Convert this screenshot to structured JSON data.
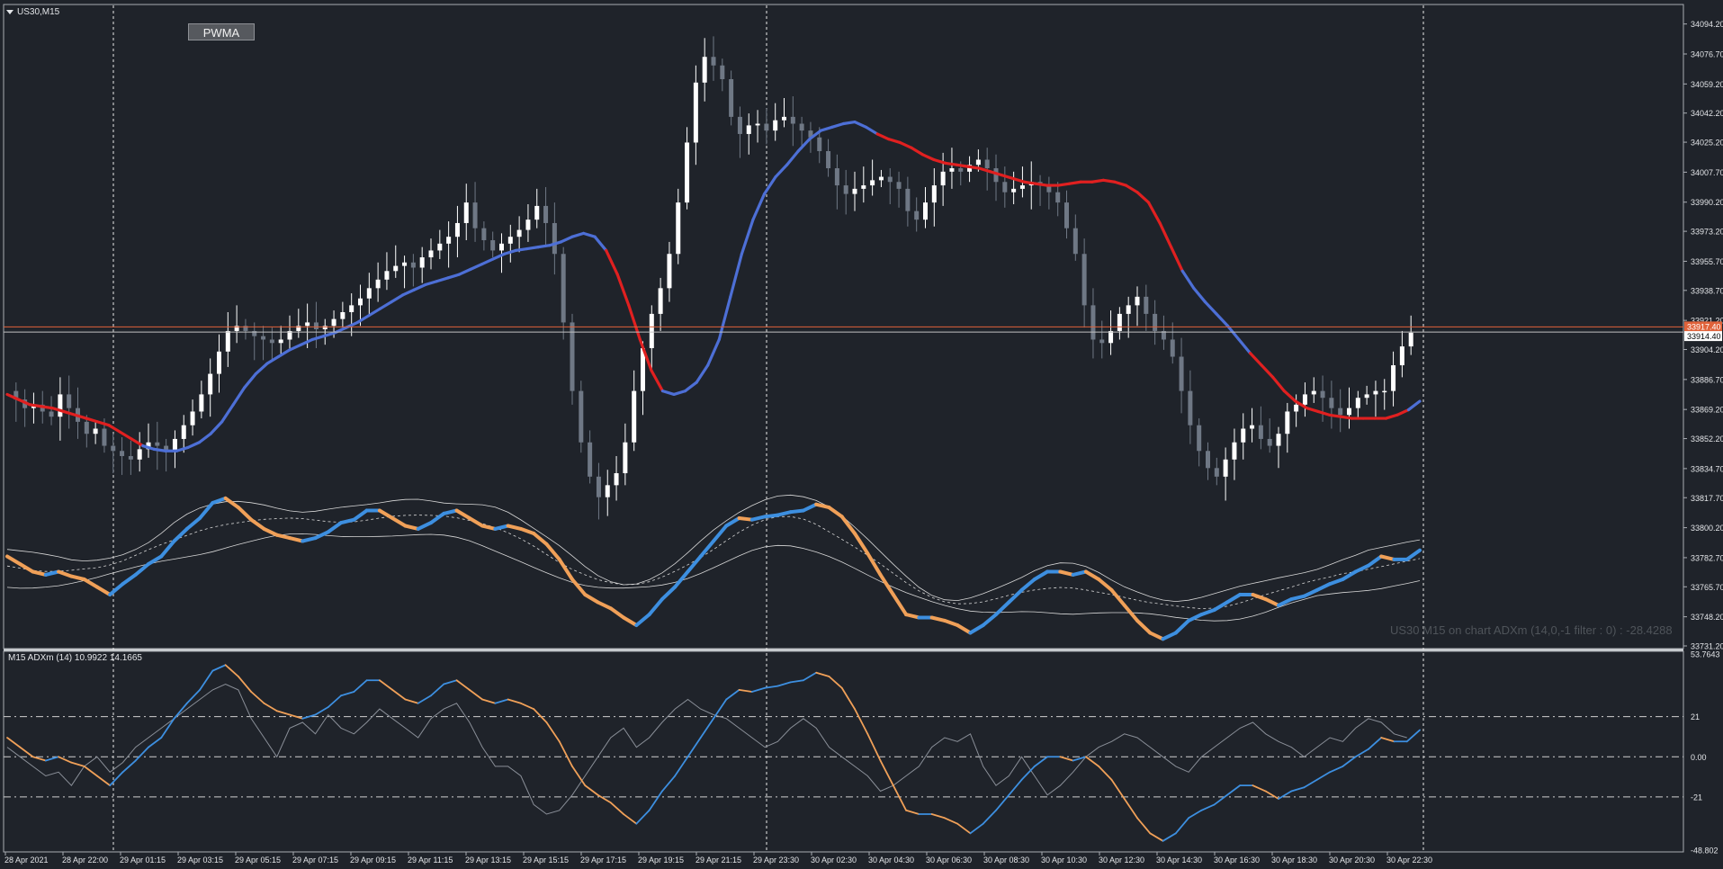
{
  "header": {
    "symbol_label": "US30,M15",
    "indicator_button": "PWMA",
    "subwindow_label": "M15 ADXm (14) 10.9922 14.1665",
    "overlay_label": "US30 M15 on chart ADXm (14,0,-1 filter : 0) : -28.4288"
  },
  "colors": {
    "background": "#1f232a",
    "grid": "#ffffff",
    "candle_up": "#ffffff",
    "candle_down": "#6f7885",
    "pwma_up": "#4d6fd6",
    "pwma_down": "#e02020",
    "adx_up": "#3d8fe0",
    "adx_down": "#f0a058",
    "adx_thin": "#8a8f98",
    "bid_line": "#e0623a",
    "ask_line": "#c0c0c0"
  },
  "chart_data": [
    {
      "type": "candlestick",
      "title": "US30,M15",
      "indicator": "PWMA",
      "ylim": [
        33731.2,
        34104.0
      ],
      "y_ticks": [
        "34094.20",
        "34076.70",
        "34059.20",
        "34042.20",
        "34025.20",
        "34007.70",
        "33990.20",
        "33973.20",
        "33955.70",
        "33938.70",
        "33921.20",
        "33904.20",
        "33886.70",
        "33869.20",
        "33852.20",
        "33834.70",
        "33817.70",
        "33800.20",
        "33782.70",
        "33765.70",
        "33748.20",
        "33731.20"
      ],
      "current_price_labels": [
        "33914.40",
        "33917.40"
      ],
      "x_ticks": [
        "28 Apr 2021",
        "28 Apr 22:00",
        "29 Apr 01:15",
        "29 Apr 03:15",
        "29 Apr 05:15",
        "29 Apr 07:15",
        "29 Apr 09:15",
        "29 Apr 11:15",
        "29 Apr 13:15",
        "29 Apr 15:15",
        "29 Apr 17:15",
        "29 Apr 19:15",
        "29 Apr 21:15",
        "29 Apr 23:30",
        "30 Apr 02:30",
        "30 Apr 04:30",
        "30 Apr 06:30",
        "30 Apr 08:30",
        "30 Apr 10:30",
        "30 Apr 12:30",
        "30 Apr 14:30",
        "30 Apr 16:30",
        "30 Apr 18:30",
        "30 Apr 20:30",
        "30 Apr 22:30"
      ],
      "close_path": [
        33880,
        33875,
        33870,
        33872,
        33868,
        33865,
        33878,
        33870,
        33862,
        33855,
        33858,
        33848,
        33845,
        33842,
        33840,
        33846,
        33850,
        33848,
        33845,
        33852,
        33860,
        33868,
        33878,
        33890,
        33903,
        33915,
        33918,
        33915,
        33912,
        33910,
        33908,
        33910,
        33915,
        33918,
        33920,
        33916,
        33918,
        33922,
        33926,
        33930,
        33934,
        33940,
        33945,
        33950,
        33953,
        33955,
        33952,
        33958,
        33962,
        33966,
        33970,
        33978,
        33990,
        33975,
        33968,
        33962,
        33966,
        33970,
        33974,
        33980,
        33988,
        33978,
        33960,
        33920,
        33880,
        33850,
        33830,
        33818,
        33825,
        33832,
        33850,
        33880,
        33905,
        33925,
        33940,
        33960,
        33990,
        34025,
        34060,
        34075,
        34070,
        34062,
        34040,
        34030,
        34035,
        34036,
        34032,
        34038,
        34040,
        34036,
        34032,
        34028,
        34020,
        34010,
        34000,
        33995,
        33998,
        34000,
        34003,
        34005,
        34002,
        33998,
        33985,
        33980,
        33990,
        34000,
        34008,
        34010,
        34008,
        34012,
        34015,
        34010,
        34002,
        33996,
        33998,
        34000,
        34002,
        34000,
        33996,
        33990,
        33975,
        33960,
        33930,
        33910,
        33908,
        33915,
        33925,
        33930,
        33935,
        33925,
        33915,
        33910,
        33900,
        33880,
        33860,
        33845,
        33835,
        33830,
        33840,
        33850,
        33858,
        33860,
        33852,
        33848,
        33855,
        33868,
        33872,
        33878,
        33880,
        33876,
        33870,
        33866,
        33870,
        33876,
        33878,
        33880,
        33880,
        33895,
        33906,
        33914
      ],
      "pwma": [
        33878,
        33875,
        33872,
        33871,
        33870,
        33868,
        33866,
        33864,
        33862,
        33860,
        33856,
        33852,
        33848,
        33846,
        33845,
        33845,
        33847,
        33850,
        33855,
        33862,
        33872,
        33882,
        33890,
        33896,
        33900,
        33904,
        33907,
        33910,
        33912,
        33914,
        33917,
        33920,
        33924,
        33928,
        33932,
        33936,
        33939,
        33942,
        33944,
        33946,
        33948,
        33951,
        33954,
        33957,
        33960,
        33962,
        33963,
        33964,
        33965,
        33967,
        33970,
        33972,
        33970,
        33962,
        33948,
        33930,
        33910,
        33892,
        33880,
        33878,
        33880,
        33885,
        33895,
        33910,
        33935,
        33960,
        33980,
        33995,
        34005,
        34012,
        34020,
        34027,
        34032,
        34034,
        34036,
        34037,
        34034,
        34030,
        34027,
        34025,
        34022,
        34018,
        34015,
        34013,
        34012,
        34011,
        34010,
        34008,
        34006,
        34004,
        34002,
        34001,
        34000,
        34000,
        34001,
        34002,
        34002,
        34003,
        34002,
        34000,
        33996,
        33990,
        33978,
        33964,
        33950,
        33940,
        33932,
        33925,
        33918,
        33910,
        33902,
        33895,
        33888,
        33880,
        33874,
        33870,
        33868,
        33866,
        33865,
        33864,
        33864,
        33864,
        33864,
        33866,
        33869,
        33874
      ],
      "pwma_red_segments": [
        [
          0,
          12
        ],
        [
          53,
          58
        ],
        [
          77,
          104
        ],
        [
          110,
          124
        ]
      ]
    },
    {
      "type": "line",
      "title": "M15 ADXm (14) 10.9922 14.1665",
      "ylim": [
        -48.802,
        53.7643
      ],
      "y_ticks": [
        "53.7643",
        "21",
        "0.00",
        "-21",
        "-48.802"
      ],
      "levels": [
        21,
        0,
        -21
      ],
      "series": [
        {
          "name": "ADXm",
          "values": [
            10,
            5,
            0,
            -2,
            0,
            -3,
            -5,
            -10,
            -15,
            -8,
            -2,
            5,
            10,
            20,
            28,
            35,
            45,
            48,
            42,
            34,
            28,
            24,
            22,
            20,
            22,
            26,
            32,
            34,
            40,
            40,
            35,
            30,
            28,
            32,
            38,
            40,
            35,
            30,
            28,
            30,
            28,
            25,
            18,
            8,
            -5,
            -15,
            -20,
            -24,
            -30,
            -35,
            -28,
            -18,
            -10,
            0,
            10,
            20,
            30,
            35,
            34,
            36,
            37,
            39,
            40,
            44,
            42,
            36,
            25,
            12,
            -2,
            -15,
            -28,
            -30,
            -30,
            -32,
            -35,
            -40,
            -35,
            -28,
            -20,
            -12,
            -5,
            0,
            0,
            -2,
            0,
            -5,
            -12,
            -22,
            -32,
            -40,
            -44,
            -40,
            -32,
            -28,
            -25,
            -20,
            -15,
            -15,
            -18,
            -22,
            -18,
            -16,
            -12,
            -8,
            -5,
            0,
            4,
            10,
            8,
            8,
            14
          ]
        },
        {
          "name": "DI",
          "values": [
            5,
            0,
            -5,
            -10,
            -8,
            -15,
            -5,
            0,
            -8,
            -3,
            5,
            10,
            15,
            20,
            25,
            30,
            35,
            38,
            35,
            20,
            10,
            0,
            15,
            18,
            12,
            22,
            15,
            12,
            18,
            25,
            20,
            15,
            10,
            20,
            25,
            28,
            18,
            5,
            -5,
            -5,
            -10,
            -25,
            -30,
            -28,
            -20,
            -10,
            0,
            10,
            15,
            5,
            10,
            18,
            25,
            30,
            25,
            22,
            20,
            15,
            10,
            5,
            8,
            15,
            20,
            15,
            5,
            0,
            -5,
            -10,
            -18,
            -15,
            -10,
            -5,
            5,
            10,
            8,
            12,
            -5,
            -15,
            -10,
            0,
            -10,
            -20,
            -15,
            -8,
            0,
            5,
            8,
            12,
            10,
            5,
            0,
            -5,
            -8,
            0,
            5,
            10,
            15,
            18,
            12,
            8,
            5,
            0,
            5,
            10,
            8,
            15,
            20,
            18,
            12,
            10
          ]
        }
      ]
    }
  ]
}
